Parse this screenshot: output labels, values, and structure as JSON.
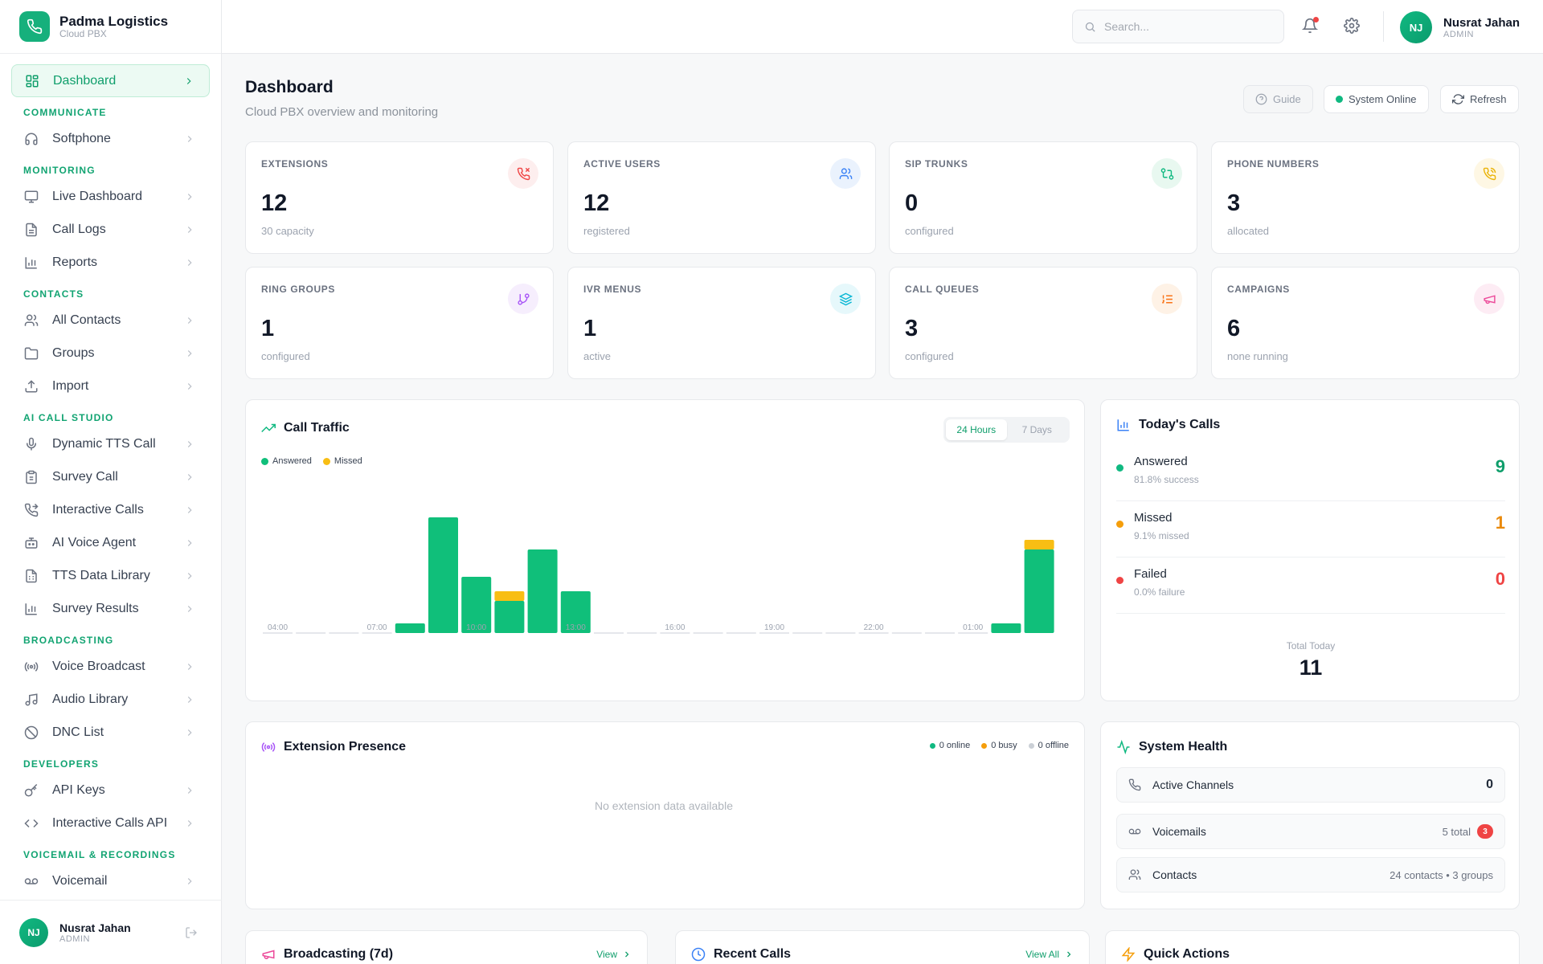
{
  "brand": {
    "name": "Padma Logistics",
    "subtitle": "Cloud PBX"
  },
  "nav": {
    "dashboard": "Dashboard",
    "sections": {
      "communicate": "COMMUNICATE",
      "monitoring": "MONITORING",
      "contacts": "CONTACTS",
      "ai_call_studio": "AI CALL STUDIO",
      "broadcasting": "BROADCASTING",
      "developers": "DEVELOPERS",
      "voicemail_recordings": "VOICEMAIL & RECORDINGS"
    },
    "items": {
      "softphone": "Softphone",
      "live_dashboard": "Live Dashboard",
      "call_logs": "Call Logs",
      "reports": "Reports",
      "all_contacts": "All Contacts",
      "groups": "Groups",
      "import": "Import",
      "dynamic_tts_call": "Dynamic TTS Call",
      "survey_call": "Survey Call",
      "interactive_calls": "Interactive Calls",
      "ai_voice_agent": "AI Voice Agent",
      "tts_data_library": "TTS Data Library",
      "survey_results": "Survey Results",
      "voice_broadcast": "Voice Broadcast",
      "audio_library": "Audio Library",
      "dnc_list": "DNC List",
      "api_keys": "API Keys",
      "interactive_calls_api": "Interactive Calls API",
      "voicemail": "Voicemail"
    }
  },
  "user": {
    "initials": "NJ",
    "name": "Nusrat Jahan",
    "role": "ADMIN"
  },
  "search": {
    "placeholder": "Search..."
  },
  "header": {
    "title": "Dashboard",
    "subtitle": "Cloud PBX overview and monitoring",
    "guide": "Guide",
    "status": "System Online",
    "refresh": "Refresh"
  },
  "stats": {
    "extensions": {
      "label": "EXTENSIONS",
      "value": "12",
      "sub": "30 capacity"
    },
    "active_users": {
      "label": "ACTIVE USERS",
      "value": "12",
      "sub": "registered"
    },
    "sip_trunks": {
      "label": "SIP TRUNKS",
      "value": "0",
      "sub": "configured"
    },
    "phone_numbers": {
      "label": "PHONE NUMBERS",
      "value": "3",
      "sub": "allocated"
    },
    "ring_groups": {
      "label": "RING GROUPS",
      "value": "1",
      "sub": "configured"
    },
    "ivr_menus": {
      "label": "IVR MENUS",
      "value": "1",
      "sub": "active"
    },
    "call_queues": {
      "label": "CALL QUEUES",
      "value": "3",
      "sub": "configured"
    },
    "campaigns": {
      "label": "CAMPAIGNS",
      "value": "6",
      "sub": "none running"
    }
  },
  "colors": {
    "answered": "#10bf7a",
    "missed": "#f8be14",
    "failed": "#ef4444",
    "accent": "#12a472"
  },
  "traffic": {
    "title": "Call Traffic",
    "range_24h": "24 Hours",
    "range_7d": "7 Days",
    "legend_answered": "Answered",
    "legend_missed": "Missed"
  },
  "chart_data": {
    "type": "bar",
    "stacked": true,
    "categories": [
      "04:00",
      "05:00",
      "06:00",
      "07:00",
      "08:00",
      "09:00",
      "10:00",
      "11:00",
      "12:00",
      "13:00",
      "14:00",
      "15:00",
      "16:00",
      "17:00",
      "18:00",
      "19:00",
      "20:00",
      "21:00",
      "22:00",
      "23:00",
      "00:00",
      "01:00",
      "02:00",
      "03:00"
    ],
    "tick_labels": [
      "04:00",
      "",
      "",
      "07:00",
      "",
      "",
      "10:00",
      "",
      "",
      "13:00",
      "",
      "",
      "16:00",
      "",
      "",
      "19:00",
      "",
      "",
      "22:00",
      "",
      "",
      "01:00",
      "",
      ""
    ],
    "series": [
      {
        "name": "Answered",
        "values": [
          0,
          0,
          0,
          0,
          0.3,
          3.6,
          1.75,
          1.0,
          2.6,
          1.3,
          0,
          0,
          0,
          0,
          0,
          0,
          0,
          0,
          0,
          0,
          0,
          0,
          0.3,
          2.6
        ]
      },
      {
        "name": "Missed",
        "values": [
          0,
          0,
          0,
          0,
          0,
          0,
          0,
          0.3,
          0,
          0,
          0,
          0,
          0,
          0,
          0,
          0,
          0,
          0,
          0,
          0,
          0,
          0,
          0,
          0.3
        ]
      }
    ],
    "ylim": [
      0,
      4
    ],
    "legend": "top-left"
  },
  "today": {
    "title": "Today's Calls",
    "answered": {
      "label": "Answered",
      "sub": "81.8% success",
      "value": "9"
    },
    "missed": {
      "label": "Missed",
      "sub": "9.1% missed",
      "value": "1"
    },
    "failed": {
      "label": "Failed",
      "sub": "0.0% failure",
      "value": "0"
    },
    "total_label": "Total Today",
    "total_value": "11"
  },
  "presence": {
    "title": "Extension Presence",
    "online": "0 online",
    "busy": "0 busy",
    "offline": "0 offline",
    "empty": "No extension data available"
  },
  "health": {
    "title": "System Health",
    "channels_label": "Active Channels",
    "channels_value": "0",
    "voicemails_label": "Voicemails",
    "voicemails_total": "5 total",
    "voicemails_badge": "3",
    "contacts_label": "Contacts",
    "contacts_meta": "24 contacts • 3 groups"
  },
  "bottom": {
    "broadcasting": "Broadcasting (7d)",
    "broadcasting_link": "View",
    "recent": "Recent Calls",
    "recent_link": "View All",
    "quick": "Quick Actions"
  }
}
